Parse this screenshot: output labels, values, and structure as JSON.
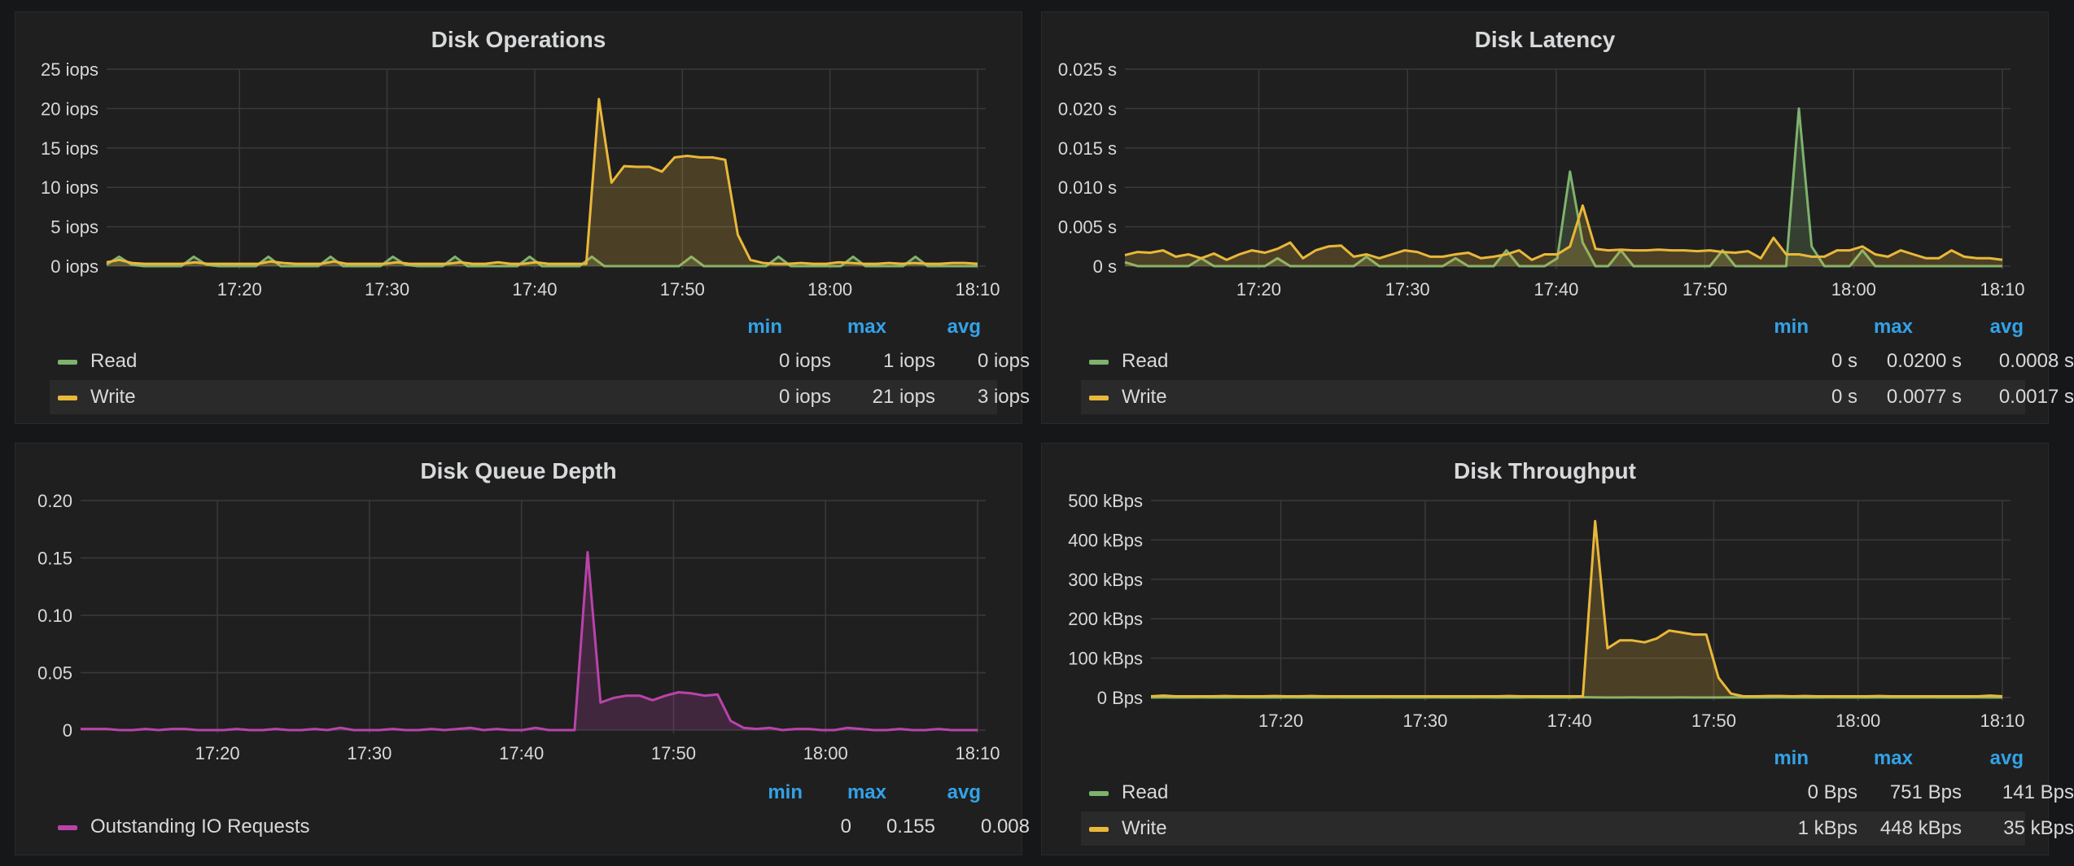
{
  "colors": {
    "read": "#7eb26d",
    "write": "#eab839",
    "queue": "#ba43a9",
    "grid": "#3a3a3c",
    "text": "#d8d9da",
    "legend_header": "#33a2e5"
  },
  "legend_headers": {
    "min": "min",
    "max": "max",
    "avg": "avg"
  },
  "chart_data": [
    {
      "type": "area",
      "title": "Disk Operations",
      "x_range": [
        "17:11",
        "18:10"
      ],
      "x_ticks": [
        "17:20",
        "17:30",
        "17:40",
        "17:50",
        "18:00",
        "18:10"
      ],
      "ylim": [
        0,
        25
      ],
      "y_ticks": [
        {
          "value": 0,
          "label": "0 iops"
        },
        {
          "value": 5,
          "label": "5 iops"
        },
        {
          "value": 10,
          "label": "10 iops"
        },
        {
          "value": 15,
          "label": "15 iops"
        },
        {
          "value": 20,
          "label": "20 iops"
        },
        {
          "value": 25,
          "label": "25 iops"
        }
      ],
      "series": [
        {
          "name": "Read",
          "color_key": "read",
          "min": "0 iops",
          "max": "1 iops",
          "avg": "0 iops",
          "values": [
            0.2,
            1.2,
            0.2,
            0,
            0,
            0,
            0,
            1.2,
            0.2,
            0,
            0,
            0,
            0,
            1.2,
            0,
            0,
            0,
            0,
            1.2,
            0,
            0,
            0,
            0,
            1.2,
            0.2,
            0,
            0,
            0,
            1.2,
            0,
            0,
            0,
            0,
            0,
            1.2,
            0,
            0,
            0,
            0,
            1.2,
            0,
            0,
            0,
            0,
            0,
            0,
            0,
            1.2,
            0,
            0,
            0,
            0,
            0,
            0,
            1.2,
            0,
            0,
            0,
            0,
            0,
            1.2,
            0,
            0,
            0,
            0,
            1.2,
            0,
            0,
            0,
            0,
            0
          ]
        },
        {
          "name": "Write",
          "color_key": "write",
          "min": "0 iops",
          "max": "21 iops",
          "avg": "3 iops",
          "values": [
            0.5,
            0.8,
            0.4,
            0.3,
            0.3,
            0.3,
            0.3,
            0.5,
            0.3,
            0.3,
            0.3,
            0.3,
            0.3,
            0.6,
            0.4,
            0.3,
            0.3,
            0.3,
            0.6,
            0.3,
            0.3,
            0.3,
            0.3,
            0.5,
            0.3,
            0.3,
            0.3,
            0.3,
            0.5,
            0.3,
            0.3,
            0.5,
            0.3,
            0.3,
            0.5,
            0.3,
            0.3,
            0.3,
            0.3,
            21.2,
            10.6,
            12.7,
            12.6,
            12.6,
            12.0,
            13.8,
            14.0,
            13.8,
            13.8,
            13.5,
            4.0,
            0.8,
            0.4,
            0.3,
            0.3,
            0.4,
            0.3,
            0.3,
            0.5,
            0.4,
            0.3,
            0.3,
            0.4,
            0.3,
            0.4,
            0.3,
            0.3,
            0.4,
            0.4,
            0.3
          ]
        }
      ]
    },
    {
      "type": "area",
      "title": "Disk Latency",
      "x_range": [
        "17:11",
        "18:10"
      ],
      "x_ticks": [
        "17:20",
        "17:30",
        "17:40",
        "17:50",
        "18:00",
        "18:10"
      ],
      "ylim": [
        0,
        0.025
      ],
      "y_ticks": [
        {
          "value": 0,
          "label": "0 s"
        },
        {
          "value": 0.005,
          "label": "0.005 s"
        },
        {
          "value": 0.01,
          "label": "0.010 s"
        },
        {
          "value": 0.015,
          "label": "0.015 s"
        },
        {
          "value": 0.02,
          "label": "0.020 s"
        },
        {
          "value": 0.025,
          "label": "0.025 s"
        }
      ],
      "series": [
        {
          "name": "Read",
          "color_key": "read",
          "min": "0 s",
          "max": "0.0200 s",
          "avg": "0.0008 s",
          "values": [
            0.0005,
            0,
            0,
            0,
            0,
            0,
            0.001,
            0,
            0,
            0,
            0,
            0,
            0.001,
            0,
            0,
            0,
            0,
            0,
            0,
            0.0012,
            0,
            0,
            0,
            0,
            0,
            0,
            0.001,
            0,
            0,
            0,
            0.002,
            0,
            0,
            0,
            0.001,
            0.012,
            0.003,
            0,
            0,
            0.002,
            0,
            0,
            0,
            0,
            0,
            0,
            0,
            0.002,
            0,
            0,
            0,
            0,
            0,
            0.02,
            0.0025,
            0,
            0,
            0,
            0.002,
            0,
            0,
            0,
            0,
            0,
            0,
            0,
            0,
            0,
            0,
            0
          ]
        },
        {
          "name": "Write",
          "color_key": "write",
          "min": "0 s",
          "max": "0.0077 s",
          "avg": "0.0017 s",
          "values": [
            0.0014,
            0.0018,
            0.0017,
            0.002,
            0.0012,
            0.0015,
            0.001,
            0.0016,
            0.0008,
            0.0015,
            0.002,
            0.0017,
            0.0022,
            0.003,
            0.001,
            0.002,
            0.0025,
            0.0026,
            0.0012,
            0.0015,
            0.001,
            0.0015,
            0.002,
            0.0018,
            0.0012,
            0.0012,
            0.0015,
            0.0017,
            0.001,
            0.0012,
            0.0015,
            0.002,
            0.0008,
            0.0015,
            0.0015,
            0.0025,
            0.0077,
            0.0022,
            0.002,
            0.0021,
            0.002,
            0.002,
            0.0021,
            0.002,
            0.002,
            0.0019,
            0.002,
            0.0018,
            0.0017,
            0.0019,
            0.001,
            0.0036,
            0.0015,
            0.0015,
            0.0012,
            0.0012,
            0.002,
            0.002,
            0.0025,
            0.0015,
            0.0012,
            0.002,
            0.0015,
            0.001,
            0.001,
            0.002,
            0.0012,
            0.001,
            0.001,
            0.0008
          ]
        }
      ]
    },
    {
      "type": "area",
      "title": "Disk Queue Depth",
      "x_range": [
        "17:11",
        "18:10"
      ],
      "x_ticks": [
        "17:20",
        "17:30",
        "17:40",
        "17:50",
        "18:00",
        "18:10"
      ],
      "ylim": [
        0,
        0.2
      ],
      "y_ticks": [
        {
          "value": 0,
          "label": "0"
        },
        {
          "value": 0.05,
          "label": "0.05"
        },
        {
          "value": 0.1,
          "label": "0.10"
        },
        {
          "value": 0.15,
          "label": "0.15"
        },
        {
          "value": 0.2,
          "label": "0.20"
        }
      ],
      "series": [
        {
          "name": "Outstanding IO Requests",
          "color_key": "queue",
          "min": "0",
          "max": "0.155",
          "avg": "0.008",
          "values": [
            0.001,
            0.001,
            0.001,
            0,
            0,
            0.001,
            0,
            0.001,
            0.001,
            0,
            0,
            0,
            0.001,
            0,
            0,
            0.001,
            0,
            0,
            0.001,
            0,
            0.002,
            0,
            0,
            0,
            0.001,
            0,
            0,
            0.001,
            0,
            0.001,
            0.002,
            0,
            0.001,
            0,
            0,
            0.002,
            0,
            0,
            0,
            0.155,
            0.024,
            0.028,
            0.03,
            0.03,
            0.026,
            0.03,
            0.033,
            0.032,
            0.03,
            0.031,
            0.008,
            0.002,
            0.001,
            0.002,
            0,
            0.001,
            0.001,
            0,
            0,
            0.002,
            0.001,
            0,
            0,
            0.001,
            0,
            0,
            0.001,
            0,
            0,
            0
          ]
        }
      ]
    },
    {
      "type": "area",
      "title": "Disk Throughput",
      "x_range": [
        "17:11",
        "18:10"
      ],
      "x_ticks": [
        "17:20",
        "17:30",
        "17:40",
        "17:50",
        "18:00",
        "18:10"
      ],
      "ylim": [
        0,
        500
      ],
      "y_ticks": [
        {
          "value": 0,
          "label": "0 Bps"
        },
        {
          "value": 100,
          "label": "100 kBps"
        },
        {
          "value": 200,
          "label": "200 kBps"
        },
        {
          "value": 300,
          "label": "300 kBps"
        },
        {
          "value": 400,
          "label": "400 kBps"
        },
        {
          "value": 500,
          "label": "500 kBps"
        }
      ],
      "series": [
        {
          "name": "Read",
          "color_key": "read",
          "min": "0 Bps",
          "max": "751 Bps",
          "avg": "141 Bps",
          "values": [
            0,
            0.2,
            0,
            0,
            0.3,
            0,
            0,
            0.2,
            0,
            0,
            0,
            0.3,
            0,
            0,
            0,
            0.2,
            0,
            0,
            0,
            0.3,
            0,
            0,
            0,
            0.2,
            0,
            0,
            0,
            0.3,
            0,
            0,
            0,
            0.4,
            0,
            0,
            0,
            0.75,
            0.2,
            0,
            0,
            0.3,
            0,
            0,
            0,
            0.2,
            0,
            0,
            0,
            0.3,
            0,
            0,
            0,
            0.2,
            0,
            0,
            0,
            0.3,
            0,
            0,
            0,
            0.2,
            0,
            0,
            0,
            0.3,
            0,
            0,
            0,
            0.2,
            0,
            0
          ]
        },
        {
          "name": "Write",
          "color_key": "write",
          "min": "1 kBps",
          "max": "448 kBps",
          "avg": "35 kBps",
          "values": [
            3,
            5,
            3,
            3,
            3,
            3,
            4,
            3,
            3,
            3,
            4,
            3,
            3,
            4,
            3,
            3,
            3,
            3,
            3,
            3,
            3,
            3,
            3,
            3,
            3,
            3,
            3,
            3,
            3,
            4,
            3,
            3,
            3,
            3,
            3,
            3,
            448,
            125,
            145,
            145,
            140,
            150,
            170,
            165,
            160,
            160,
            50,
            10,
            3,
            3,
            4,
            4,
            3,
            4,
            3,
            3,
            3,
            3,
            3,
            4,
            3,
            3,
            3,
            3,
            3,
            3,
            3,
            3,
            5,
            3
          ]
        }
      ]
    }
  ]
}
